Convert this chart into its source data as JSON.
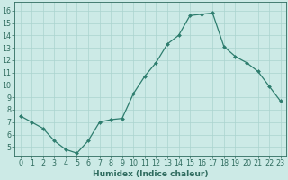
{
  "x": [
    0,
    1,
    2,
    3,
    4,
    5,
    6,
    7,
    8,
    9,
    10,
    11,
    12,
    13,
    14,
    15,
    16,
    17,
    18,
    19,
    20,
    21,
    22,
    23
  ],
  "y": [
    7.5,
    7.0,
    6.5,
    5.5,
    4.8,
    4.5,
    5.5,
    7.0,
    7.2,
    7.3,
    9.3,
    10.7,
    11.8,
    13.3,
    14.0,
    15.6,
    15.7,
    15.8,
    13.1,
    12.3,
    11.8,
    11.1,
    9.9,
    8.7
  ],
  "line_color": "#2e7d6e",
  "marker": "D",
  "marker_size": 2.0,
  "bg_color": "#cceae6",
  "grid_color": "#aad4ce",
  "xlabel": "Humidex (Indice chaleur)",
  "ylabel_ticks": [
    5,
    6,
    7,
    8,
    9,
    10,
    11,
    12,
    13,
    14,
    15,
    16
  ],
  "xlim": [
    -0.5,
    23.5
  ],
  "ylim": [
    4.3,
    16.7
  ],
  "font_color": "#2e6b5e",
  "xlabel_fontsize": 6.5,
  "tick_fontsize": 5.8,
  "linewidth": 0.9
}
